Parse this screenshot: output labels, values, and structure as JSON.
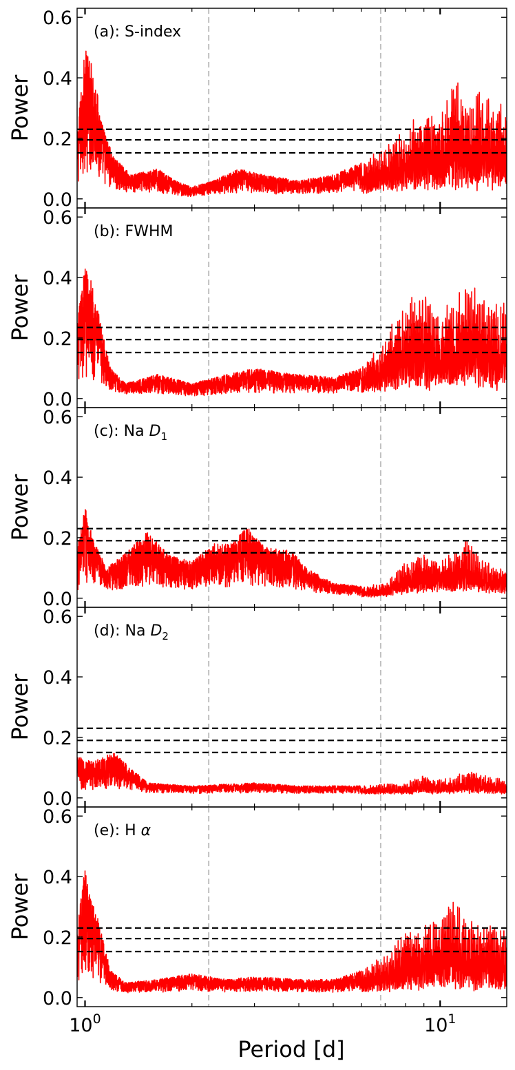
{
  "chart_data": {
    "type": "line",
    "xlabel": "Period [d]",
    "ylabel": "Power",
    "xscale": "log",
    "xlim": [
      0.95,
      15.4
    ],
    "ylim": [
      -0.03,
      0.63
    ],
    "x_ticks": [
      {
        "value": 1,
        "base": "10",
        "exp": "0"
      },
      {
        "value": 10,
        "base": "10",
        "exp": "1"
      }
    ],
    "y_ticks": [
      {
        "value": 0.0,
        "label": "0.0"
      },
      {
        "value": 0.2,
        "label": "0.2"
      },
      {
        "value": 0.4,
        "label": "0.4"
      },
      {
        "value": 0.6,
        "label": "0.6"
      }
    ],
    "vertical_lines": [
      2.23,
      6.8
    ],
    "line_color": "#ff0000",
    "threshold_color": "#000000",
    "vline_color": "#c0c0c0",
    "grid": false,
    "panels": [
      {
        "label_prefix": "(a): S-index",
        "label_italic": "",
        "label_sub": "",
        "thresholds": [
          0.23,
          0.195,
          0.152
        ],
        "peaks": [
          [
            0.95,
            0.22
          ],
          [
            1.0,
            0.5
          ],
          [
            1.05,
            0.45
          ],
          [
            1.12,
            0.25
          ],
          [
            1.2,
            0.14
          ],
          [
            1.35,
            0.08
          ],
          [
            1.6,
            0.1
          ],
          [
            1.8,
            0.06
          ],
          [
            2.0,
            0.04
          ],
          [
            2.3,
            0.06
          ],
          [
            2.7,
            0.1
          ],
          [
            3.2,
            0.08
          ],
          [
            4.0,
            0.06
          ],
          [
            5.0,
            0.08
          ],
          [
            6.0,
            0.12
          ],
          [
            7.0,
            0.18
          ],
          [
            8.0,
            0.24
          ],
          [
            9.0,
            0.3
          ],
          [
            10.0,
            0.28
          ],
          [
            11.0,
            0.42
          ],
          [
            12.0,
            0.32
          ],
          [
            13.0,
            0.36
          ],
          [
            14.0,
            0.34
          ],
          [
            15.4,
            0.3
          ]
        ],
        "floor": [
          [
            0.95,
            0.0
          ],
          [
            1.2,
            0.01
          ],
          [
            2.0,
            0.0
          ],
          [
            6.0,
            0.01
          ],
          [
            8.0,
            0.01
          ],
          [
            15.4,
            0.01
          ]
        ]
      },
      {
        "label_prefix": "(b): FWHM",
        "label_italic": "",
        "label_sub": "",
        "thresholds": [
          0.235,
          0.195,
          0.152
        ],
        "peaks": [
          [
            0.95,
            0.25
          ],
          [
            1.0,
            0.45
          ],
          [
            1.05,
            0.38
          ],
          [
            1.12,
            0.22
          ],
          [
            1.18,
            0.1
          ],
          [
            1.3,
            0.05
          ],
          [
            1.6,
            0.08
          ],
          [
            2.0,
            0.05
          ],
          [
            2.5,
            0.08
          ],
          [
            3.0,
            0.1
          ],
          [
            4.0,
            0.08
          ],
          [
            5.0,
            0.07
          ],
          [
            6.0,
            0.1
          ],
          [
            7.0,
            0.2
          ],
          [
            8.0,
            0.34
          ],
          [
            9.0,
            0.36
          ],
          [
            10.0,
            0.3
          ],
          [
            11.0,
            0.34
          ],
          [
            12.0,
            0.4
          ],
          [
            13.0,
            0.34
          ],
          [
            14.0,
            0.32
          ],
          [
            15.4,
            0.33
          ]
        ],
        "floor": [
          [
            0.95,
            0.0
          ],
          [
            1.2,
            0.01
          ],
          [
            2.0,
            0.0
          ],
          [
            6.0,
            0.01
          ],
          [
            7.5,
            0.01
          ],
          [
            15.4,
            0.01
          ]
        ]
      },
      {
        "label_prefix": "(c): Na ",
        "label_italic": "D",
        "label_sub": "1",
        "thresholds": [
          0.23,
          0.19,
          0.15
        ],
        "peaks": [
          [
            0.95,
            0.16
          ],
          [
            1.0,
            0.31
          ],
          [
            1.05,
            0.2
          ],
          [
            1.15,
            0.1
          ],
          [
            1.3,
            0.15
          ],
          [
            1.5,
            0.22
          ],
          [
            1.7,
            0.15
          ],
          [
            2.0,
            0.12
          ],
          [
            2.3,
            0.18
          ],
          [
            2.6,
            0.18
          ],
          [
            2.85,
            0.24
          ],
          [
            3.2,
            0.17
          ],
          [
            3.8,
            0.16
          ],
          [
            4.2,
            0.1
          ],
          [
            5.0,
            0.05
          ],
          [
            6.0,
            0.04
          ],
          [
            7.0,
            0.05
          ],
          [
            8.0,
            0.12
          ],
          [
            9.0,
            0.15
          ],
          [
            10.0,
            0.14
          ],
          [
            11.0,
            0.16
          ],
          [
            12.0,
            0.2
          ],
          [
            13.0,
            0.13
          ],
          [
            15.4,
            0.1
          ]
        ],
        "floor": [
          [
            0.95,
            0.0
          ],
          [
            1.1,
            0.01
          ],
          [
            2.0,
            0.01
          ],
          [
            4.0,
            0.01
          ],
          [
            6.5,
            0.0
          ],
          [
            9.0,
            0.01
          ],
          [
            15.4,
            0.01
          ]
        ]
      },
      {
        "label_prefix": "(d): Na ",
        "label_italic": "D",
        "label_sub": "2",
        "thresholds": [
          0.23,
          0.19,
          0.15
        ],
        "peaks": [
          [
            0.95,
            0.14
          ],
          [
            1.05,
            0.12
          ],
          [
            1.2,
            0.15
          ],
          [
            1.35,
            0.1
          ],
          [
            1.5,
            0.05
          ],
          [
            2.0,
            0.04
          ],
          [
            3.0,
            0.05
          ],
          [
            4.0,
            0.04
          ],
          [
            5.0,
            0.04
          ],
          [
            6.0,
            0.04
          ],
          [
            7.0,
            0.05
          ],
          [
            8.0,
            0.05
          ],
          [
            9.0,
            0.08
          ],
          [
            10.0,
            0.06
          ],
          [
            12.0,
            0.09
          ],
          [
            13.0,
            0.08
          ],
          [
            15.4,
            0.06
          ]
        ],
        "floor": [
          [
            0.95,
            0.01
          ],
          [
            1.5,
            0.01
          ],
          [
            4.0,
            0.01
          ],
          [
            15.4,
            0.01
          ]
        ]
      },
      {
        "label_prefix": "(e): H ",
        "label_italic": "α",
        "label_sub": "",
        "thresholds": [
          0.23,
          0.195,
          0.152
        ],
        "peaks": [
          [
            0.95,
            0.24
          ],
          [
            1.0,
            0.43
          ],
          [
            1.05,
            0.33
          ],
          [
            1.12,
            0.2
          ],
          [
            1.18,
            0.09
          ],
          [
            1.3,
            0.05
          ],
          [
            1.6,
            0.06
          ],
          [
            2.0,
            0.08
          ],
          [
            2.5,
            0.06
          ],
          [
            3.0,
            0.07
          ],
          [
            4.0,
            0.06
          ],
          [
            5.0,
            0.06
          ],
          [
            6.0,
            0.09
          ],
          [
            7.0,
            0.15
          ],
          [
            8.0,
            0.22
          ],
          [
            9.0,
            0.24
          ],
          [
            10.0,
            0.28
          ],
          [
            11.0,
            0.34
          ],
          [
            12.0,
            0.25
          ],
          [
            13.0,
            0.26
          ],
          [
            14.0,
            0.25
          ],
          [
            15.4,
            0.22
          ]
        ],
        "floor": [
          [
            0.95,
            0.01
          ],
          [
            1.2,
            0.01
          ],
          [
            2.0,
            0.01
          ],
          [
            6.0,
            0.01
          ],
          [
            15.4,
            0.01
          ]
        ]
      }
    ]
  }
}
